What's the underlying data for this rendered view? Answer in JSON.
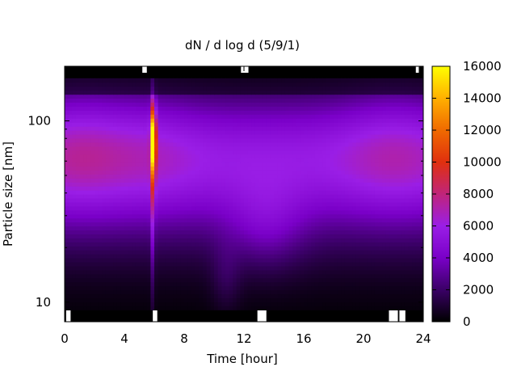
{
  "chart_data": {
    "type": "heatmap",
    "title": "dN / d log d (5/9/1)",
    "xlabel": "Time [hour]",
    "ylabel": "Particle size [nm]",
    "x_range": [
      0,
      24
    ],
    "x_ticks": [
      "0",
      "4",
      "8",
      "12",
      "16",
      "20",
      "24"
    ],
    "y_scale": "log",
    "y_range": [
      7.8,
      200
    ],
    "y_ticks": [
      "10",
      "100"
    ],
    "colorbar": {
      "range": [
        0,
        16000
      ],
      "ticks": [
        "0",
        "2000",
        "4000",
        "6000",
        "8000",
        "10000",
        "12000",
        "14000",
        "16000"
      ],
      "colors": [
        "#000000",
        "#3a0066",
        "#7a00c8",
        "#9a1ee6",
        "#c0247a",
        "#e0300e",
        "#f06a00",
        "#ffb000",
        "#ffff00"
      ]
    },
    "features": [
      {
        "name": "accumulation mode band",
        "diameter_nm": 65,
        "value": 6500
      },
      {
        "name": "event at ~6 h",
        "time_hour": 5.9,
        "diameter_nm": 80,
        "value": 15000
      },
      {
        "name": "nucleation growth ~11-15 h",
        "time_hour": 13,
        "diameter_nm": 25,
        "value": 3500
      }
    ]
  }
}
